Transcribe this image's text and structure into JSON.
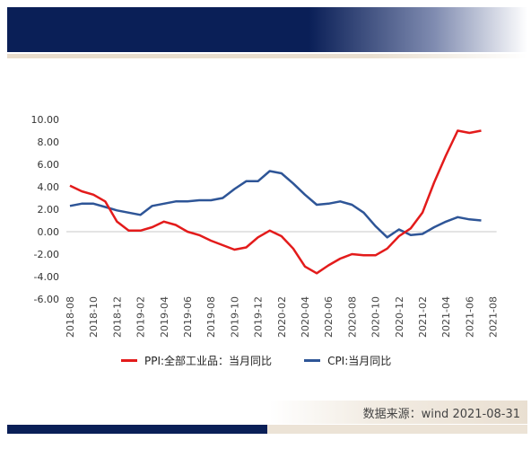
{
  "colors": {
    "ppi": "#e31b1b",
    "cpi": "#2e5597",
    "navy": "#0a1f57"
  },
  "legend": {
    "ppi_label": "PPI:全部工业品：当月同比",
    "cpi_label": "CPI:当月同比"
  },
  "source": "数据来源：wind 2021-08-31",
  "chart_data": {
    "type": "line",
    "title": "",
    "xlabel": "",
    "ylabel": "",
    "ylim": [
      -6,
      10
    ],
    "yticks": [
      "10.00",
      "8.00",
      "6.00",
      "4.00",
      "2.00",
      "0.00",
      "-2.00",
      "-4.00",
      "-6.00"
    ],
    "x": [
      "2018-08",
      "2018-09",
      "2018-10",
      "2018-11",
      "2018-12",
      "2019-01",
      "2019-02",
      "2019-03",
      "2019-04",
      "2019-05",
      "2019-06",
      "2019-07",
      "2019-08",
      "2019-09",
      "2019-10",
      "2019-11",
      "2019-12",
      "2020-01",
      "2020-02",
      "2020-03",
      "2020-04",
      "2020-05",
      "2020-06",
      "2020-07",
      "2020-08",
      "2020-09",
      "2020-10",
      "2020-11",
      "2020-12",
      "2021-01",
      "2021-02",
      "2021-03",
      "2021-04",
      "2021-05",
      "2021-06",
      "2021-07",
      "2021-08"
    ],
    "xtick_labels": [
      "2018-08",
      "2018-10",
      "2018-12",
      "2019-02",
      "2019-04",
      "2019-06",
      "2019-08",
      "2019-10",
      "2019-12",
      "2020-02",
      "2020-04",
      "2020-06",
      "2020-08",
      "2020-10",
      "2020-12",
      "2021-02",
      "2021-04",
      "2021-06",
      "2021-08"
    ],
    "grid": false,
    "legend_position": "bottom",
    "series": [
      {
        "name": "PPI:全部工业品：当月同比",
        "values": [
          4.1,
          3.6,
          3.3,
          2.7,
          0.9,
          0.1,
          0.1,
          0.4,
          0.9,
          0.6,
          0.0,
          -0.3,
          -0.8,
          -1.2,
          -1.6,
          -1.4,
          -0.5,
          0.1,
          -0.4,
          -1.5,
          -3.1,
          -3.7,
          -3.0,
          -2.4,
          -2.0,
          -2.1,
          -2.1,
          -1.5,
          -0.4,
          0.3,
          1.7,
          4.4,
          6.8,
          9.0,
          8.8,
          9.0,
          null
        ]
      },
      {
        "name": "CPI:当月同比",
        "values": [
          2.3,
          2.5,
          2.5,
          2.2,
          1.9,
          1.7,
          1.5,
          2.3,
          2.5,
          2.7,
          2.7,
          2.8,
          2.8,
          3.0,
          3.8,
          4.5,
          4.5,
          5.4,
          5.2,
          4.3,
          3.3,
          2.4,
          2.5,
          2.7,
          2.4,
          1.7,
          0.5,
          -0.5,
          0.2,
          -0.3,
          -0.2,
          0.4,
          0.9,
          1.3,
          1.1,
          1.0,
          null
        ]
      }
    ]
  }
}
